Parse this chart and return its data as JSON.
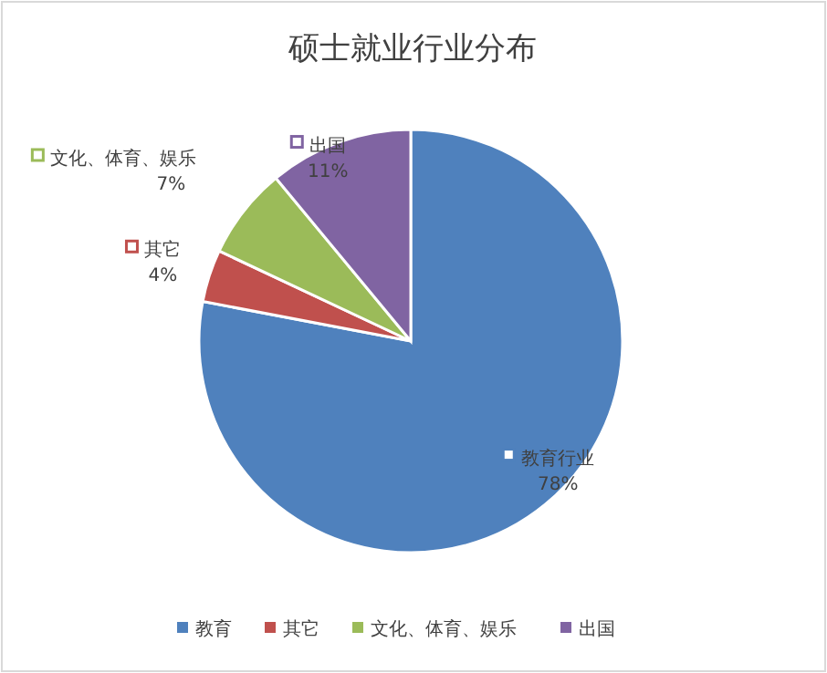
{
  "chart_data": {
    "type": "pie",
    "title": "硕士就业行业分布",
    "categories": [
      "教育",
      "其它",
      "文化、体育、娱乐",
      "出国"
    ],
    "values": [
      78,
      4,
      7,
      11
    ],
    "colors": [
      "#4f81bd",
      "#c0504d",
      "#9bbb59",
      "#8064a2"
    ],
    "value_labels": [
      "78%",
      "4%",
      "7%",
      "11%"
    ],
    "annotations": [
      "教育行业",
      "其它",
      "文化、体育、娱乐",
      "出国"
    ],
    "legend": "bottom"
  }
}
